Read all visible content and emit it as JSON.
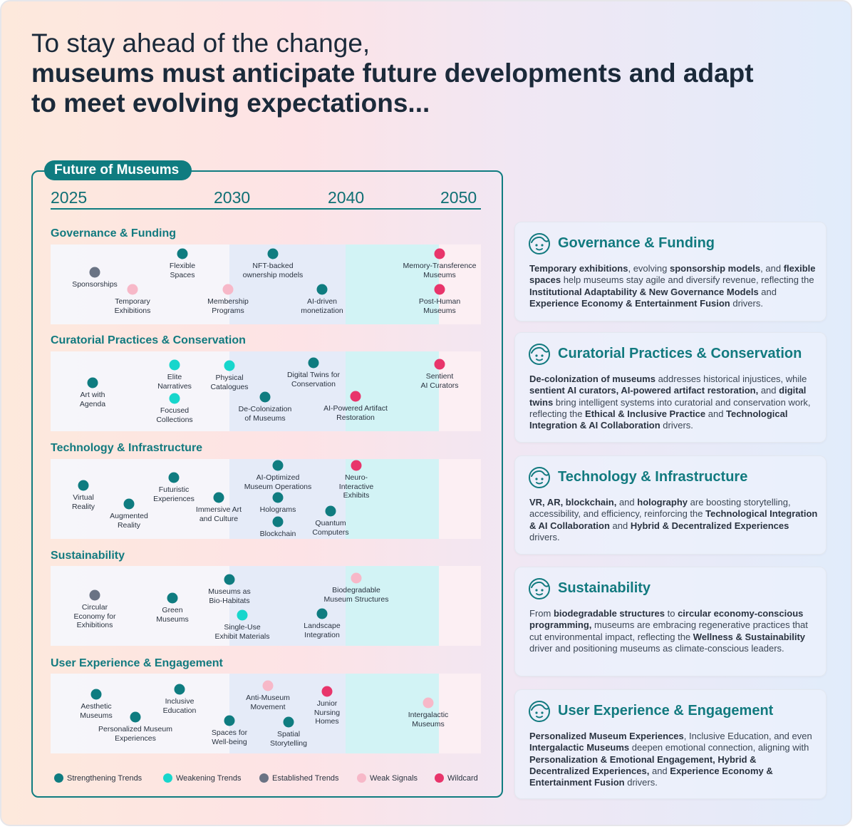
{
  "headline": {
    "line1": "To stay ahead of the change,",
    "line2": "museums must anticipate future developments and adapt",
    "line3": "to meet evolving expectations..."
  },
  "panel": {
    "title": "Future of Museums",
    "years": [
      "2025",
      "2030",
      "2040",
      "2050"
    ]
  },
  "colors": {
    "strengthening": "#0f7c80",
    "weakening": "#17d6cc",
    "established": "#6a7384",
    "weak_signal": "#f7b8c8",
    "wildcard": "#e8356b"
  },
  "categories": [
    {
      "title": "Governance & Funding",
      "items": [
        {
          "label": "Sponsorships",
          "type": "established",
          "period": "2025-2030"
        },
        {
          "label": "Temporary\nExhibitions",
          "type": "weak_signal",
          "period": "2025-2030"
        },
        {
          "label": "Flexible\nSpaces",
          "type": "strengthening",
          "period": "2025-2030"
        },
        {
          "label": "Membership\nPrograms",
          "type": "weak_signal",
          "period": "2030-2040"
        },
        {
          "label": "NFT-backed\nownership models",
          "type": "strengthening",
          "period": "2030-2040"
        },
        {
          "label": "AI-driven\nmonetization",
          "type": "strengthening",
          "period": "2040-2050"
        },
        {
          "label": "Memory-Transference\nMuseums",
          "type": "wildcard",
          "period": "2050+"
        },
        {
          "label": "Post-Human\nMuseums",
          "type": "wildcard",
          "period": "2050+"
        }
      ]
    },
    {
      "title": "Curatorial Practices & Conservation",
      "items": [
        {
          "label": "Art with\nAgenda",
          "type": "strengthening",
          "period": "2025-2030"
        },
        {
          "label": "Elite\nNarratives",
          "type": "weakening",
          "period": "2025-2030"
        },
        {
          "label": "Focused\nCollections",
          "type": "weakening",
          "period": "2025-2030"
        },
        {
          "label": "Physical\nCatalogues",
          "type": "weakening",
          "period": "2030-2040"
        },
        {
          "label": "De-Colonization\nof Museums",
          "type": "strengthening",
          "period": "2030-2040"
        },
        {
          "label": "Digital Twins for\nConservation",
          "type": "strengthening",
          "period": "2030-2040"
        },
        {
          "label": "AI-Powered Artifact\nRestoration",
          "type": "wildcard",
          "period": "2040-2050"
        },
        {
          "label": "Sentient\nAI Curators",
          "type": "wildcard",
          "period": "2050+"
        }
      ]
    },
    {
      "title": "Technology & Infrastructure",
      "items": [
        {
          "label": "Virtual\nReality",
          "type": "strengthening",
          "period": "2025-2030"
        },
        {
          "label": "Augmented\nReality",
          "type": "strengthening",
          "period": "2025-2030"
        },
        {
          "label": "Futuristic\nExperiences",
          "type": "strengthening",
          "period": "2025-2030"
        },
        {
          "label": "Immersive Art\nand Culture",
          "type": "strengthening",
          "period": "2025-2030"
        },
        {
          "label": "AI-Optimized\nMuseum Operations",
          "type": "strengthening",
          "period": "2030-2040"
        },
        {
          "label": "Holograms",
          "type": "strengthening",
          "period": "2030-2040"
        },
        {
          "label": "Blockchain",
          "type": "strengthening",
          "period": "2030-2040"
        },
        {
          "label": "Quantum\nComputers",
          "type": "strengthening",
          "period": "2040-2050"
        },
        {
          "label": "Neuro-\nInteractive\nExhibits",
          "type": "wildcard",
          "period": "2040-2050"
        }
      ]
    },
    {
      "title": "Sustainability",
      "items": [
        {
          "label": "Circular\nEconomy for\nExhibitions",
          "type": "established",
          "period": "2025-2030"
        },
        {
          "label": "Green\nMuseums",
          "type": "strengthening",
          "period": "2025-2030"
        },
        {
          "label": "Museums as\nBio-Habitats",
          "type": "strengthening",
          "period": "2030-2040"
        },
        {
          "label": "Single-Use\nExhibit Materials",
          "type": "weakening",
          "period": "2030-2040"
        },
        {
          "label": "Landscape\nIntegration",
          "type": "strengthening",
          "period": "2030-2040"
        },
        {
          "label": "Biodegradable\nMuseum Structures",
          "type": "weak_signal",
          "period": "2040-2050"
        }
      ]
    },
    {
      "title": "User Experience & Engagement",
      "items": [
        {
          "label": "Aesthetic\nMuseums",
          "type": "strengthening",
          "period": "2025-2030"
        },
        {
          "label": "Personalized Museum\nExperiences",
          "type": "strengthening",
          "period": "2025-2030"
        },
        {
          "label": "Inclusive\nEducation",
          "type": "strengthening",
          "period": "2025-2030"
        },
        {
          "label": "Spaces for\nWell-being",
          "type": "strengthening",
          "period": "2030-2040"
        },
        {
          "label": "Anti-Museum\nMovement",
          "type": "weak_signal",
          "period": "2030-2040"
        },
        {
          "label": "Spatial\nStorytelling",
          "type": "strengthening",
          "period": "2030-2040"
        },
        {
          "label": "Junior\nNursing\nHomes",
          "type": "wildcard",
          "period": "2030-2040"
        },
        {
          "label": "Intergalactic\nMuseums",
          "type": "weak_signal",
          "period": "2040-2050"
        }
      ]
    }
  ],
  "legend": [
    {
      "label": "Strengthening Trends",
      "type": "strengthening"
    },
    {
      "label": "Weakening Trends",
      "type": "weakening"
    },
    {
      "label": "Established Trends",
      "type": "established"
    },
    {
      "label": "Weak Signals",
      "type": "weak_signal"
    },
    {
      "label": "Wildcard",
      "type": "wildcard"
    }
  ],
  "cards": [
    {
      "title": "Governance & Funding",
      "icon": "face-icon",
      "body": [
        {
          "t": "Temporary exhibitions",
          "b": true
        },
        {
          "t": ", evolving ",
          "b": false
        },
        {
          "t": "sponsorship models",
          "b": true
        },
        {
          "t": ", and ",
          "b": false
        },
        {
          "t": "flexible spaces",
          "b": true
        },
        {
          "t": " help museums stay agile and diversify revenue, reflecting the ",
          "b": false
        },
        {
          "t": "Institutional Adaptability & New Governance Models",
          "b": true
        },
        {
          "t": " and ",
          "b": false
        },
        {
          "t": "Experience Economy & Entertainment Fusion",
          "b": true
        },
        {
          "t": " drivers.",
          "b": false
        }
      ]
    },
    {
      "title": "Curatorial Practices & Conservation",
      "icon": "face-icon",
      "body": [
        {
          "t": "De-colonization of museums",
          "b": true
        },
        {
          "t": " addresses historical injustices, while ",
          "b": false
        },
        {
          "t": "sentient AI curators, AI-powered artifact restoration,",
          "b": true
        },
        {
          "t": " and ",
          "b": false
        },
        {
          "t": "digital twins",
          "b": true
        },
        {
          "t": " bring intelligent systems into curatorial and conservation work, reflecting the ",
          "b": false
        },
        {
          "t": "Ethical & Inclusive Practice",
          "b": true
        },
        {
          "t": " and ",
          "b": false
        },
        {
          "t": "Technological Integration & AI Collaboration",
          "b": true
        },
        {
          "t": " drivers.",
          "b": false
        }
      ]
    },
    {
      "title": "Technology & Infrastructure",
      "icon": "face-icon",
      "body": [
        {
          "t": "VR, AR, blockchain,",
          "b": true
        },
        {
          "t": " and ",
          "b": false
        },
        {
          "t": "holography",
          "b": true
        },
        {
          "t": " are boosting storytelling, accessibility, and efficiency, reinforcing the ",
          "b": false
        },
        {
          "t": "Technological Integration & AI Collaboration",
          "b": true
        },
        {
          "t": " and ",
          "b": false
        },
        {
          "t": "Hybrid & Decentralized Experiences",
          "b": true
        },
        {
          "t": " drivers.",
          "b": false
        }
      ]
    },
    {
      "title": "Sustainability",
      "icon": "face-icon",
      "body": [
        {
          "t": "From ",
          "b": false
        },
        {
          "t": "biodegradable structures",
          "b": true
        },
        {
          "t": " to ",
          "b": false
        },
        {
          "t": "circular economy-conscious programming,",
          "b": true
        },
        {
          "t": " museums are embracing regenerative practices that cut environmental impact, reflecting the ",
          "b": false
        },
        {
          "t": "Wellness & Sustainability",
          "b": true
        },
        {
          "t": " driver and positioning museums as climate-conscious leaders.",
          "b": false
        }
      ]
    },
    {
      "title": "User Experience & Engagement",
      "icon": "face-icon",
      "body": [
        {
          "t": "Personalized Museum Experiences",
          "b": true
        },
        {
          "t": ", Inclusive Education, and even ",
          "b": false
        },
        {
          "t": "Intergalactic Museums",
          "b": true
        },
        {
          "t": " deepen emotional connection, aligning with ",
          "b": false
        },
        {
          "t": "Personalization & Emotional Engagement, Hybrid & Decentralized Experiences,",
          "b": true
        },
        {
          "t": " and ",
          "b": false
        },
        {
          "t": "Experience Economy & Entertainment Fusion",
          "b": true
        },
        {
          "t": " drivers.",
          "b": false
        }
      ]
    }
  ]
}
